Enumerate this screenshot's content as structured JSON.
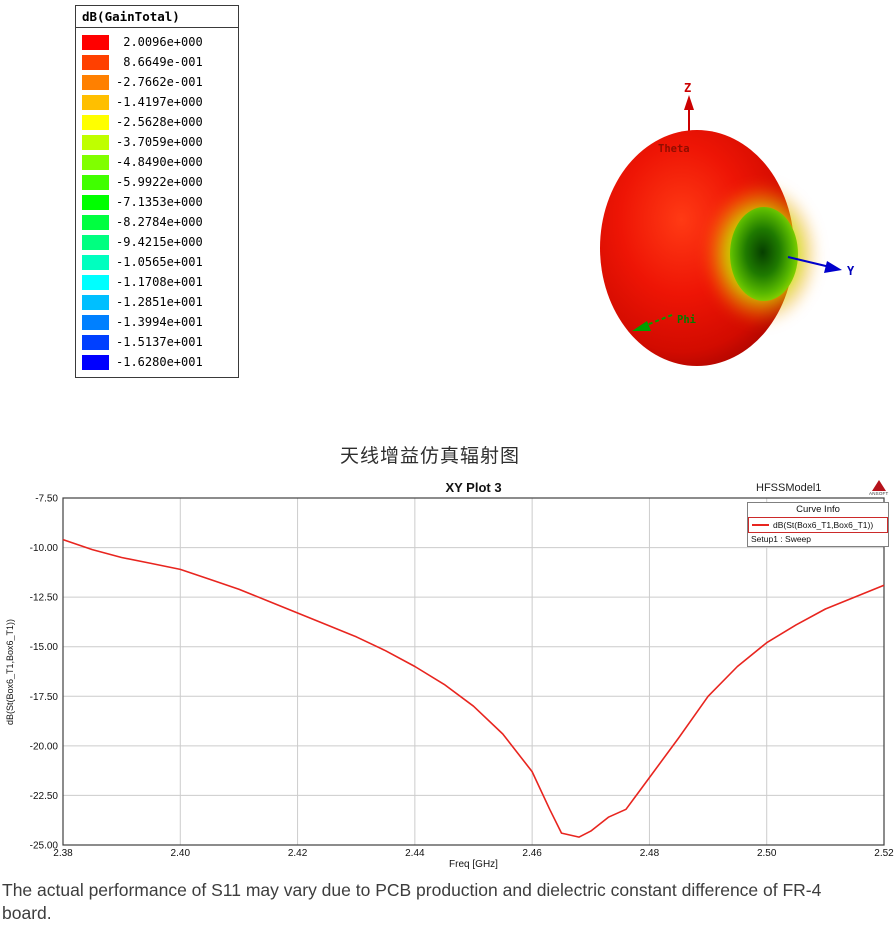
{
  "colorbar": {
    "title": "dB(GainTotal)",
    "entries": [
      {
        "value": " 2.0096e+000",
        "color": "#ff0000"
      },
      {
        "value": " 8.6649e-001",
        "color": "#ff4000"
      },
      {
        "value": "-2.7662e-001",
        "color": "#ff8000"
      },
      {
        "value": "-1.4197e+000",
        "color": "#ffbf00"
      },
      {
        "value": "-2.5628e+000",
        "color": "#ffff00"
      },
      {
        "value": "-3.7059e+000",
        "color": "#bfff00"
      },
      {
        "value": "-4.8490e+000",
        "color": "#80ff00"
      },
      {
        "value": "-5.9922e+000",
        "color": "#40ff00"
      },
      {
        "value": "-7.1353e+000",
        "color": "#00ff00"
      },
      {
        "value": "-8.2784e+000",
        "color": "#00ff40"
      },
      {
        "value": "-9.4215e+000",
        "color": "#00ff80"
      },
      {
        "value": "-1.0565e+001",
        "color": "#00ffbf"
      },
      {
        "value": "-1.1708e+001",
        "color": "#00ffff"
      },
      {
        "value": "-1.2851e+001",
        "color": "#00bfff"
      },
      {
        "value": "-1.3994e+001",
        "color": "#0080ff"
      },
      {
        "value": "-1.5137e+001",
        "color": "#0040ff"
      },
      {
        "value": "-1.6280e+001",
        "color": "#0000ff"
      }
    ]
  },
  "pattern3d": {
    "z_label": "Z",
    "y_label": "Y",
    "theta_label": "Theta",
    "phi_label": "Phi",
    "lobe_color": "#e01205",
    "null_color": "#1f7a00",
    "z_axis_color": "#cc0000",
    "y_axis_color": "#0000cc",
    "phi_color": "#00a000"
  },
  "section_title": "天线增益仿真辐射图",
  "chart": {
    "title": "XY Plot 3",
    "model_label": "HFSSModel1",
    "ansoft_label": "ANSOFT",
    "legend_header": "Curve Info",
    "legend_series": "dB(St(Box6_T1,Box6_T1))",
    "legend_setup": "Setup1 : Sweep",
    "xlabel": "Freq [GHz]",
    "ylabel": "dB(St(Box6_T1,Box6_T1))"
  },
  "chart_data": {
    "type": "line",
    "title": "XY Plot 3",
    "xlabel": "Freq [GHz]",
    "ylabel": "dB(St(Box6_T1,Box6_T1))",
    "xlim": [
      2.38,
      2.52
    ],
    "ylim": [
      -25.0,
      -7.5
    ],
    "xticks": [
      2.38,
      2.4,
      2.42,
      2.44,
      2.46,
      2.48,
      2.5,
      2.52
    ],
    "yticks": [
      -7.5,
      -10.0,
      -12.5,
      -15.0,
      -17.5,
      -20.0,
      -22.5,
      -25.0
    ],
    "grid": true,
    "legend_position": "top-right",
    "series": [
      {
        "name": "dB(St(Box6_T1,Box6_T1))",
        "setup": "Setup1 : Sweep",
        "color": "#e8251f",
        "x": [
          2.38,
          2.385,
          2.39,
          2.395,
          2.4,
          2.405,
          2.41,
          2.415,
          2.42,
          2.425,
          2.43,
          2.435,
          2.44,
          2.445,
          2.45,
          2.455,
          2.46,
          2.463,
          2.465,
          2.468,
          2.47,
          2.473,
          2.476,
          2.48,
          2.485,
          2.49,
          2.495,
          2.5,
          2.505,
          2.51,
          2.515,
          2.52
        ],
        "y": [
          -9.6,
          -10.1,
          -10.5,
          -10.8,
          -11.1,
          -11.6,
          -12.1,
          -12.7,
          -13.3,
          -13.9,
          -14.5,
          -15.2,
          -16.0,
          -16.9,
          -18.0,
          -19.4,
          -21.3,
          -23.2,
          -24.4,
          -24.6,
          -24.3,
          -23.6,
          -23.2,
          -21.6,
          -19.6,
          -17.5,
          -16.0,
          -14.8,
          -13.9,
          -13.1,
          -12.5,
          -11.9
        ]
      }
    ]
  },
  "footer": {
    "text": "The actual performance of S11 may vary due to PCB production and dielectric constant difference of FR-4 board."
  }
}
